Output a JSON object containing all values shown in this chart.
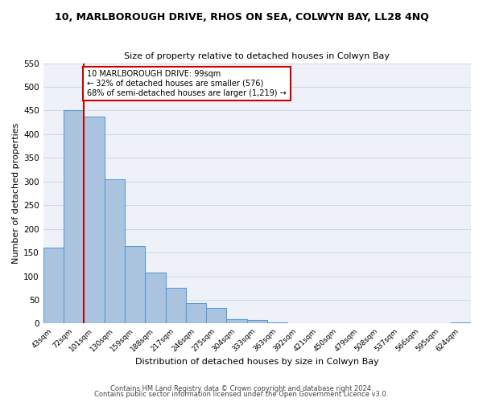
{
  "title": "10, MARLBOROUGH DRIVE, RHOS ON SEA, COLWYN BAY, LL28 4NQ",
  "subtitle": "Size of property relative to detached houses in Colwyn Bay",
  "xlabel": "Distribution of detached houses by size in Colwyn Bay",
  "ylabel": "Number of detached properties",
  "categories": [
    "43sqm",
    "72sqm",
    "101sqm",
    "130sqm",
    "159sqm",
    "188sqm",
    "217sqm",
    "246sqm",
    "275sqm",
    "304sqm",
    "333sqm",
    "363sqm",
    "392sqm",
    "421sqm",
    "450sqm",
    "479sqm",
    "508sqm",
    "537sqm",
    "566sqm",
    "595sqm",
    "624sqm"
  ],
  "values": [
    161,
    450,
    438,
    305,
    163,
    108,
    75,
    44,
    33,
    10,
    7,
    2,
    0,
    0,
    0,
    0,
    0,
    0,
    0,
    0,
    3
  ],
  "bar_color": "#aac4e0",
  "bar_edge_color": "#5b9bd5",
  "grid_color": "#d0d8e8",
  "background_color": "#eef2f8",
  "vline_x_index": 1.5,
  "vline_color": "#cc0000",
  "annotation_text": "10 MARLBOROUGH DRIVE: 99sqm\n← 32% of detached houses are smaller (576)\n68% of semi-detached houses are larger (1,219) →",
  "annotation_box_color": "#ffffff",
  "annotation_box_edge_color": "#cc0000",
  "ylim": [
    0,
    550
  ],
  "yticks": [
    0,
    50,
    100,
    150,
    200,
    250,
    300,
    350,
    400,
    450,
    500,
    550
  ],
  "footnote1": "Contains HM Land Registry data © Crown copyright and database right 2024.",
  "footnote2": "Contains public sector information licensed under the Open Government Licence v3.0."
}
